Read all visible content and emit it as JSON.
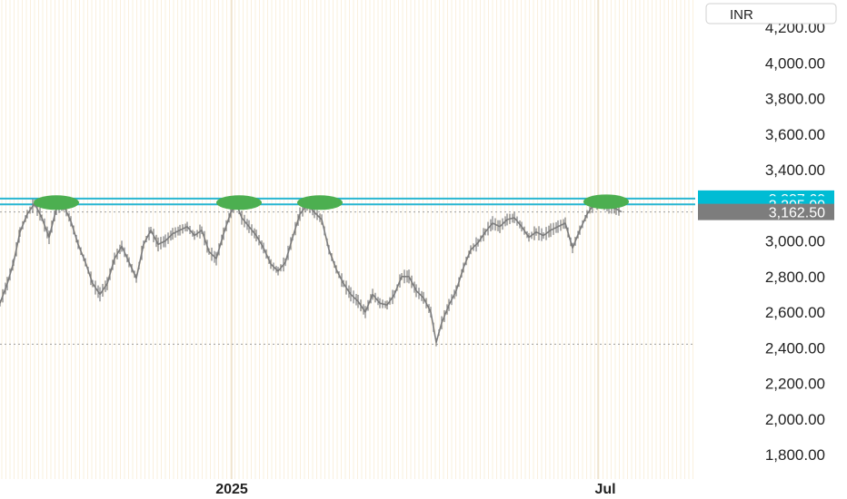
{
  "chart_data": {
    "type": "line",
    "currency": "INR",
    "ylim": [
      1700,
      4260
    ],
    "y_ticks": [
      4200,
      4000,
      3800,
      3600,
      3400,
      3000,
      2800,
      2600,
      2400,
      2200,
      2000,
      1800
    ],
    "y_tick_labels": [
      "4,200.00",
      "4,000.00",
      "3,800.00",
      "3,600.00",
      "3,400.00",
      "3,000.00",
      "2,800.00",
      "2,600.00",
      "2,400.00",
      "2,200.00",
      "2,000.00",
      "1,800.00"
    ],
    "x_tick_labels": [
      "2025",
      "Jul"
    ],
    "price_series": [
      {
        "i": 0,
        "v": 2650
      },
      {
        "i": 8,
        "v": 2760
      },
      {
        "i": 15,
        "v": 2880
      },
      {
        "i": 22,
        "v": 3050
      },
      {
        "i": 30,
        "v": 3150
      },
      {
        "i": 38,
        "v": 3210
      },
      {
        "i": 46,
        "v": 3130
      },
      {
        "i": 54,
        "v": 3020
      },
      {
        "i": 62,
        "v": 3180
      },
      {
        "i": 70,
        "v": 3200
      },
      {
        "i": 78,
        "v": 3110
      },
      {
        "i": 86,
        "v": 2980
      },
      {
        "i": 94,
        "v": 2880
      },
      {
        "i": 102,
        "v": 2760
      },
      {
        "i": 110,
        "v": 2700
      },
      {
        "i": 118,
        "v": 2760
      },
      {
        "i": 126,
        "v": 2900
      },
      {
        "i": 134,
        "v": 2970
      },
      {
        "i": 142,
        "v": 2880
      },
      {
        "i": 150,
        "v": 2790
      },
      {
        "i": 158,
        "v": 2980
      },
      {
        "i": 166,
        "v": 3060
      },
      {
        "i": 174,
        "v": 2980
      },
      {
        "i": 182,
        "v": 3000
      },
      {
        "i": 190,
        "v": 3040
      },
      {
        "i": 198,
        "v": 3060
      },
      {
        "i": 206,
        "v": 3080
      },
      {
        "i": 214,
        "v": 3030
      },
      {
        "i": 222,
        "v": 3060
      },
      {
        "i": 230,
        "v": 2940
      },
      {
        "i": 238,
        "v": 2900
      },
      {
        "i": 246,
        "v": 3040
      },
      {
        "i": 254,
        "v": 3160
      },
      {
        "i": 260,
        "v": 3210
      },
      {
        "i": 266,
        "v": 3130
      },
      {
        "i": 274,
        "v": 3080
      },
      {
        "i": 282,
        "v": 3030
      },
      {
        "i": 290,
        "v": 2960
      },
      {
        "i": 298,
        "v": 2870
      },
      {
        "i": 306,
        "v": 2830
      },
      {
        "i": 314,
        "v": 2880
      },
      {
        "i": 322,
        "v": 3020
      },
      {
        "i": 330,
        "v": 3150
      },
      {
        "i": 338,
        "v": 3205
      },
      {
        "i": 346,
        "v": 3160
      },
      {
        "i": 354,
        "v": 3120
      },
      {
        "i": 362,
        "v": 2950
      },
      {
        "i": 370,
        "v": 2840
      },
      {
        "i": 378,
        "v": 2760
      },
      {
        "i": 386,
        "v": 2700
      },
      {
        "i": 394,
        "v": 2660
      },
      {
        "i": 402,
        "v": 2600
      },
      {
        "i": 410,
        "v": 2700
      },
      {
        "i": 418,
        "v": 2650
      },
      {
        "i": 426,
        "v": 2640
      },
      {
        "i": 434,
        "v": 2700
      },
      {
        "i": 442,
        "v": 2800
      },
      {
        "i": 450,
        "v": 2800
      },
      {
        "i": 458,
        "v": 2720
      },
      {
        "i": 466,
        "v": 2680
      },
      {
        "i": 474,
        "v": 2600
      },
      {
        "i": 480,
        "v": 2430
      },
      {
        "i": 486,
        "v": 2540
      },
      {
        "i": 494,
        "v": 2640
      },
      {
        "i": 502,
        "v": 2720
      },
      {
        "i": 510,
        "v": 2850
      },
      {
        "i": 518,
        "v": 2950
      },
      {
        "i": 526,
        "v": 2990
      },
      {
        "i": 534,
        "v": 3050
      },
      {
        "i": 542,
        "v": 3100
      },
      {
        "i": 550,
        "v": 3080
      },
      {
        "i": 558,
        "v": 3120
      },
      {
        "i": 566,
        "v": 3130
      },
      {
        "i": 574,
        "v": 3080
      },
      {
        "i": 582,
        "v": 3020
      },
      {
        "i": 590,
        "v": 3050
      },
      {
        "i": 598,
        "v": 3030
      },
      {
        "i": 606,
        "v": 3060
      },
      {
        "i": 614,
        "v": 3080
      },
      {
        "i": 622,
        "v": 3100
      },
      {
        "i": 630,
        "v": 2960
      },
      {
        "i": 638,
        "v": 3060
      },
      {
        "i": 646,
        "v": 3150
      },
      {
        "i": 654,
        "v": 3210
      },
      {
        "i": 662,
        "v": 3220
      },
      {
        "i": 670,
        "v": 3190
      },
      {
        "i": 678,
        "v": 3180
      },
      {
        "i": 684,
        "v": 3162.5
      }
    ],
    "horizontal_lines": [
      {
        "value": 3237.6,
        "label": "3,237.60",
        "color": "#29b6d1",
        "style": "solid"
      },
      {
        "value": 3205.0,
        "label": "3,205.00",
        "color": "#29b6d1",
        "style": "solid"
      },
      {
        "value": 3162.5,
        "label": "3,162.50",
        "color": "#9e9e9e",
        "style": "dotted"
      },
      {
        "value": 2420.0,
        "label": "",
        "color": "#9e9e9e",
        "style": "dotted"
      }
    ],
    "highlights": [
      {
        "index": 62,
        "value": 3215,
        "color": "#4caf50"
      },
      {
        "index": 263,
        "value": 3215,
        "color": "#4caf50"
      },
      {
        "index": 352,
        "value": 3215,
        "color": "#4caf50"
      },
      {
        "index": 667,
        "value": 3220,
        "color": "#4caf50"
      }
    ],
    "colors": {
      "price": "#7d7d7d",
      "resistance": "#29b6d1",
      "last_price_badge": "#7d7d7d",
      "resistance_badge": "#00bcd4",
      "highlight": "#4caf50",
      "grid_vertical": "#f6e6c8"
    }
  }
}
